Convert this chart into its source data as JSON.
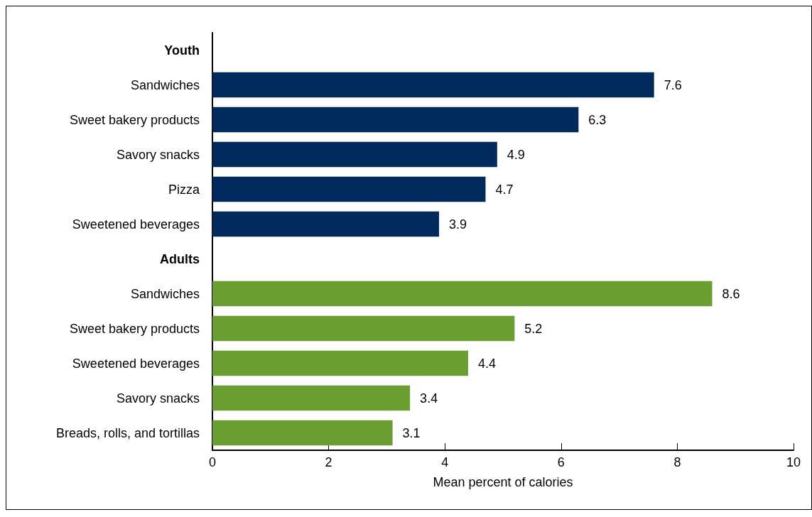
{
  "chart_data": {
    "type": "bar",
    "orientation": "horizontal",
    "xlabel": "Mean percent of calories",
    "categories": [
      "Youth",
      "Sandwiches",
      "Sweet bakery products",
      "Savory snacks",
      "Pizza",
      "Sweetened beverages",
      "Adults",
      "Sandwiches",
      "Sweet bakery products",
      "Sweetened beverages",
      "Savory snacks",
      "Breads, rolls, and tortillas"
    ],
    "series": [
      {
        "color": "#002b5c",
        "values": [
          null,
          7.6,
          6.3,
          4.9,
          4.7,
          3.9,
          null,
          null,
          null,
          null,
          null,
          null
        ]
      },
      {
        "color": "#6b9e31",
        "values": [
          null,
          null,
          null,
          null,
          null,
          null,
          null,
          8.6,
          5.2,
          4.4,
          3.4,
          3.1
        ]
      }
    ],
    "xlim": [
      0,
      10
    ],
    "xticks": [
      0,
      2,
      4,
      6,
      8,
      10
    ],
    "data_labels": true,
    "grid": false
  }
}
